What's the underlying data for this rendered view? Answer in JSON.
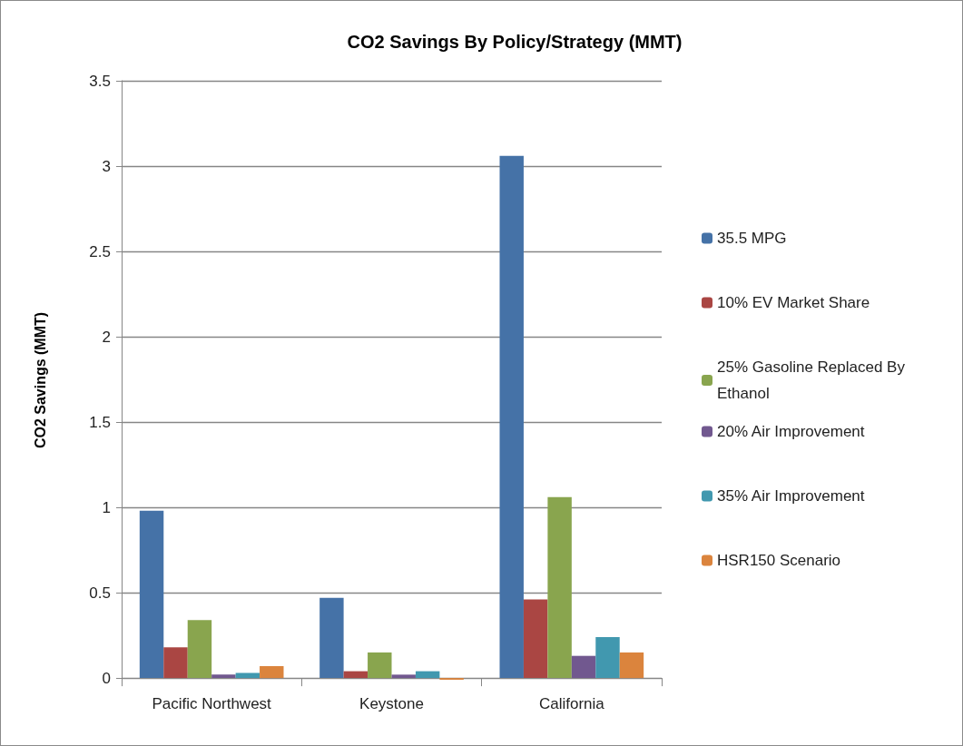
{
  "chart_data": {
    "type": "bar",
    "title": "CO2 Savings By Policy/Strategy (MMT)",
    "ylabel": "CO2 Savings (MMT)",
    "categories": [
      "Pacific Northwest",
      "Keystone",
      "California"
    ],
    "series": [
      {
        "name": "35.5 MPG",
        "color": "#4572a7",
        "values": [
          0.98,
          0.47,
          3.06
        ]
      },
      {
        "name": "10% EV Market Share",
        "color": "#aa4643",
        "values": [
          0.18,
          0.04,
          0.46
        ]
      },
      {
        "name": "25% Gasoline Replaced By Ethanol",
        "color": "#89a54e",
        "values": [
          0.34,
          0.15,
          1.06
        ]
      },
      {
        "name": "20% Air Improvement",
        "color": "#71588f",
        "values": [
          0.02,
          0.02,
          0.13
        ]
      },
      {
        "name": "35% Air Improvement",
        "color": "#4198af",
        "values": [
          0.03,
          0.04,
          0.24
        ]
      },
      {
        "name": "HSR150 Scenario",
        "color": "#db843d",
        "values": [
          0.07,
          -0.01,
          0.15
        ]
      }
    ],
    "ylim": [
      -0.01,
      3.5
    ],
    "yticks": [
      0,
      0.5,
      1,
      1.5,
      2,
      2.5,
      3,
      3.5
    ],
    "grid": "y",
    "legend": "right"
  }
}
